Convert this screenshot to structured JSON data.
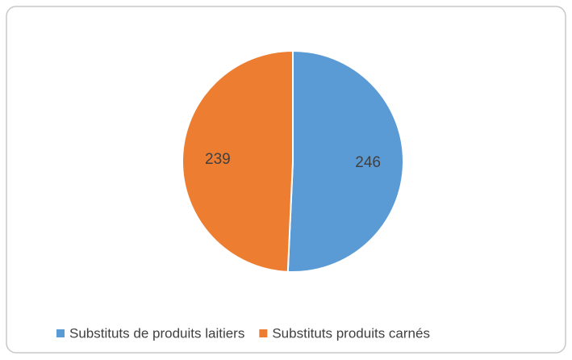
{
  "chart_data": {
    "type": "pie",
    "categories": [
      "Substituts de produits laitiers",
      "Substituts produits carnés"
    ],
    "values": [
      246,
      239
    ],
    "colors": [
      "#5b9bd5",
      "#ed7d31"
    ],
    "legend": "bottom"
  }
}
